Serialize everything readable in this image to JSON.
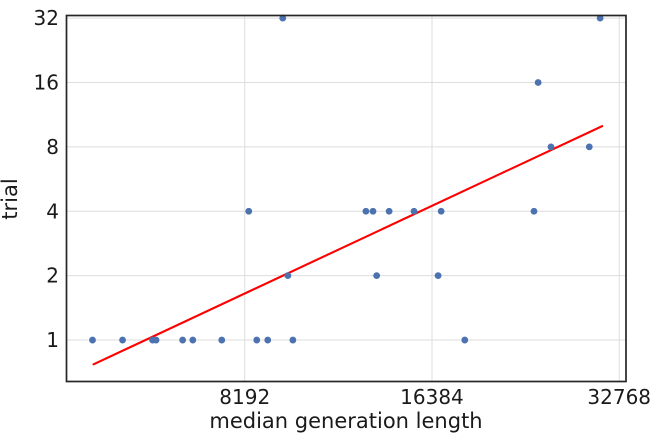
{
  "chart_data": {
    "type": "scatter",
    "title": "",
    "xlabel": "median generation length",
    "ylabel": "trial",
    "x_scale": "log2",
    "y_scale": "log2",
    "x_ticks": [
      8192,
      16384,
      32768
    ],
    "y_ticks": [
      1,
      2,
      4,
      8,
      16,
      32
    ],
    "xlim": [
      4235,
      33600
    ],
    "ylim": [
      0.64,
      32.9
    ],
    "grid": true,
    "legend": false,
    "marker_color": "#4c72b0",
    "marker_radius": 3.4,
    "points": [
      [
        4663,
        1
      ],
      [
        5212,
        1
      ],
      [
        5824,
        1
      ],
      [
        5900,
        1
      ],
      [
        6510,
        1
      ],
      [
        6760,
        1
      ],
      [
        7524,
        1
      ],
      [
        8565,
        1
      ],
      [
        8920,
        1
      ],
      [
        9790,
        1
      ],
      [
        18500,
        1
      ],
      [
        9610,
        2
      ],
      [
        13350,
        2
      ],
      [
        16760,
        2
      ],
      [
        8315,
        4
      ],
      [
        12830,
        4
      ],
      [
        13170,
        4
      ],
      [
        13980,
        4
      ],
      [
        15330,
        4
      ],
      [
        16950,
        4
      ],
      [
        23900,
        4
      ],
      [
        25450,
        8
      ],
      [
        29330,
        8
      ],
      [
        24270,
        16
      ],
      [
        9430,
        32
      ],
      [
        30530,
        32
      ]
    ],
    "trend_line": {
      "color": "#ff0000",
      "width": 2.1,
      "x1": 4681,
      "y1": 0.77,
      "x2": 30760,
      "y2": 10.0
    }
  },
  "colors": {
    "background": "#ffffff",
    "grid": "#dddddd",
    "spine": "#262626",
    "text": "#1a1a1a"
  }
}
